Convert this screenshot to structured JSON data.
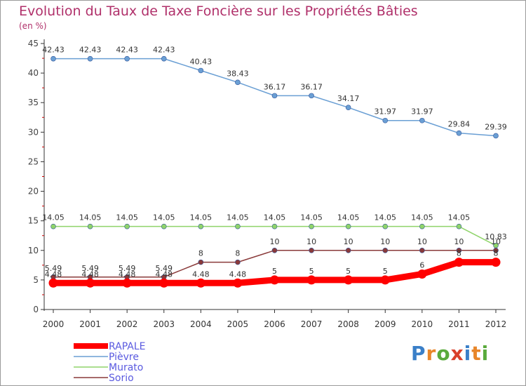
{
  "title": "Evolution du Taux de Taxe Foncière sur les Propriétés Bâties",
  "unit_label": "(en %)",
  "logo": {
    "text": "Proxiti",
    "letters": [
      {
        "char": "P",
        "color": "#3a7fc8"
      },
      {
        "char": "r",
        "color": "#e8862a"
      },
      {
        "char": "o",
        "color": "#5aaa3c"
      },
      {
        "char": "x",
        "color": "#d9402a"
      },
      {
        "char": "i",
        "color": "#3a7fc8"
      },
      {
        "char": "t",
        "color": "#e8862a"
      },
      {
        "char": "i",
        "color": "#5aaa3c"
      }
    ]
  },
  "chart_data": {
    "type": "line",
    "title": "Evolution du Taux de Taxe Foncière sur les Propriétés Bâties",
    "ylabel": "(en %)",
    "xlabel": "",
    "categories": [
      "2000",
      "2001",
      "2002",
      "2003",
      "2004",
      "2005",
      "2006",
      "2007",
      "2008",
      "2009",
      "2010",
      "2011",
      "2012"
    ],
    "ylim": [
      0,
      45
    ],
    "yticks": [
      0,
      5,
      10,
      15,
      20,
      25,
      30,
      35,
      40,
      45
    ],
    "grid": false,
    "legend_position": "bottom-left",
    "series": [
      {
        "name": "RAPALE",
        "color": "#ff0000",
        "emphasis": true,
        "values": [
          4.48,
          4.48,
          4.48,
          4.48,
          4.48,
          4.48,
          5,
          5,
          5,
          5,
          6,
          8,
          8
        ],
        "labels": [
          "4.48",
          "4.48",
          "4.48",
          "4.48",
          "4.48",
          "4.48",
          "5",
          "5",
          "5",
          "5",
          "6",
          "8",
          "8"
        ]
      },
      {
        "name": "Pièvre",
        "color": "#6a9fd4",
        "emphasis": false,
        "values": [
          42.43,
          42.43,
          42.43,
          42.43,
          40.43,
          38.43,
          36.17,
          36.17,
          34.17,
          31.97,
          31.97,
          29.84,
          29.39
        ],
        "labels": [
          "42.43",
          "42.43",
          "42.43",
          "42.43",
          "40.43",
          "38.43",
          "36.17",
          "36.17",
          "34.17",
          "31.97",
          "31.97",
          "29.84",
          "29.39"
        ]
      },
      {
        "name": "Murato",
        "color": "#8fd46a",
        "emphasis": false,
        "values": [
          14.05,
          14.05,
          14.05,
          14.05,
          14.05,
          14.05,
          14.05,
          14.05,
          14.05,
          14.05,
          14.05,
          14.05,
          10.83
        ],
        "labels": [
          "14.05",
          "14.05",
          "14.05",
          "14.05",
          "14.05",
          "14.05",
          "14.05",
          "14.05",
          "14.05",
          "14.05",
          "14.05",
          "14.05",
          "10.83"
        ]
      },
      {
        "name": "Sorio",
        "color": "#8a3a3a",
        "emphasis": false,
        "values": [
          5.49,
          5.49,
          5.49,
          5.49,
          8,
          8,
          10,
          10,
          10,
          10,
          10,
          10,
          10
        ],
        "labels": [
          "5.49",
          "5.49",
          "5.49",
          "5.49",
          "8",
          "8",
          "10",
          "10",
          "10",
          "10",
          "10",
          "10",
          "10"
        ]
      }
    ]
  }
}
